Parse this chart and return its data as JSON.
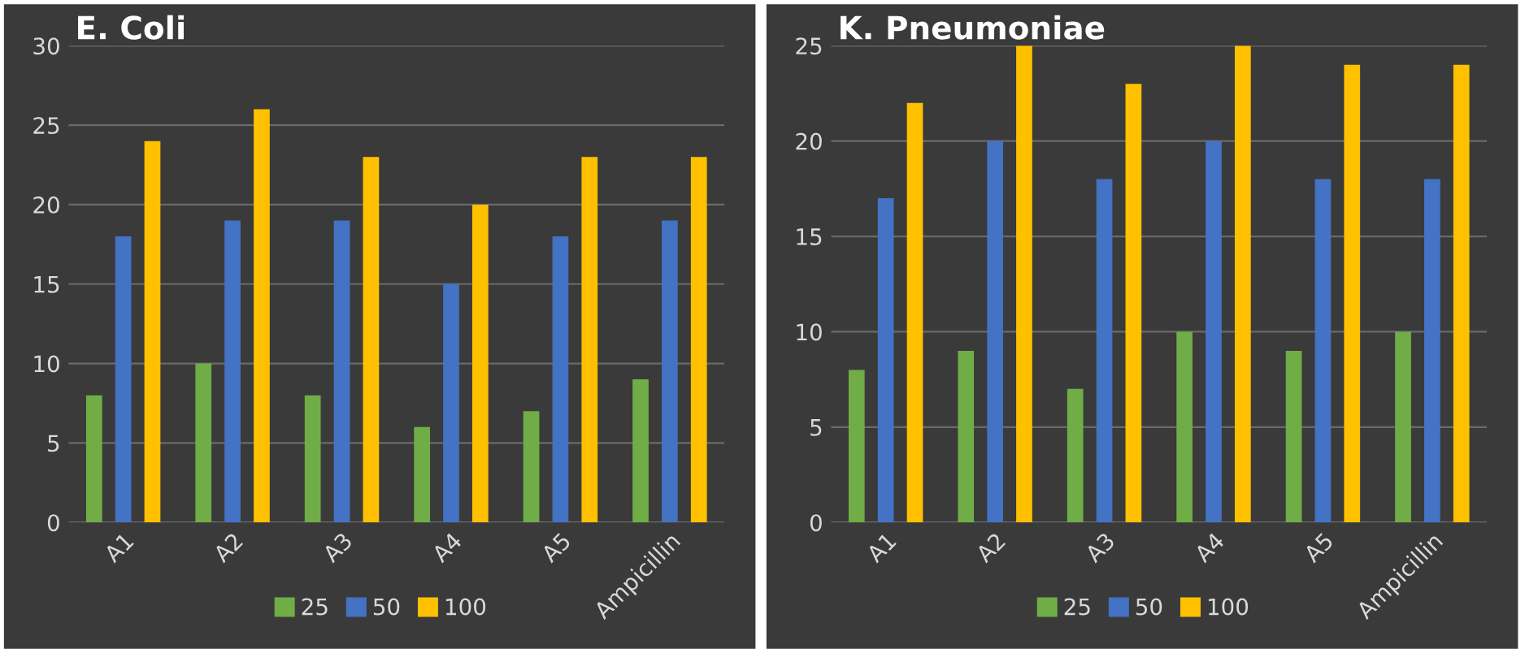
{
  "chart_data": [
    {
      "type": "bar",
      "title": "E. Coli",
      "categories": [
        "A1",
        "A2",
        "A3",
        "A4",
        "A5",
        "Ampicillin"
      ],
      "series": [
        {
          "name": "25",
          "color": "#70ad47",
          "values": [
            8,
            10,
            8,
            6,
            7,
            9
          ]
        },
        {
          "name": "50",
          "color": "#4472c4",
          "values": [
            18,
            19,
            19,
            15,
            18,
            19
          ]
        },
        {
          "name": "100",
          "color": "#ffc000",
          "values": [
            24,
            26,
            23,
            20,
            23,
            23
          ]
        }
      ],
      "ylim": [
        0,
        30
      ],
      "yticks": [
        0,
        5,
        10,
        15,
        20,
        25,
        30
      ],
      "grid": "y",
      "legend": "bottom"
    },
    {
      "type": "bar",
      "title": "K. Pneumoniae",
      "categories": [
        "A1",
        "A2",
        "A3",
        "A4",
        "A5",
        "Ampicillin"
      ],
      "series": [
        {
          "name": "25",
          "color": "#70ad47",
          "values": [
            8,
            9,
            7,
            10,
            9,
            10
          ]
        },
        {
          "name": "50",
          "color": "#4472c4",
          "values": [
            17,
            20,
            18,
            20,
            18,
            18
          ]
        },
        {
          "name": "100",
          "color": "#ffc000",
          "values": [
            22,
            25,
            23,
            25,
            24,
            24
          ]
        }
      ],
      "ylim": [
        0,
        25
      ],
      "yticks": [
        0,
        5,
        10,
        15,
        20,
        25
      ],
      "grid": "y",
      "legend": "bottom"
    }
  ]
}
